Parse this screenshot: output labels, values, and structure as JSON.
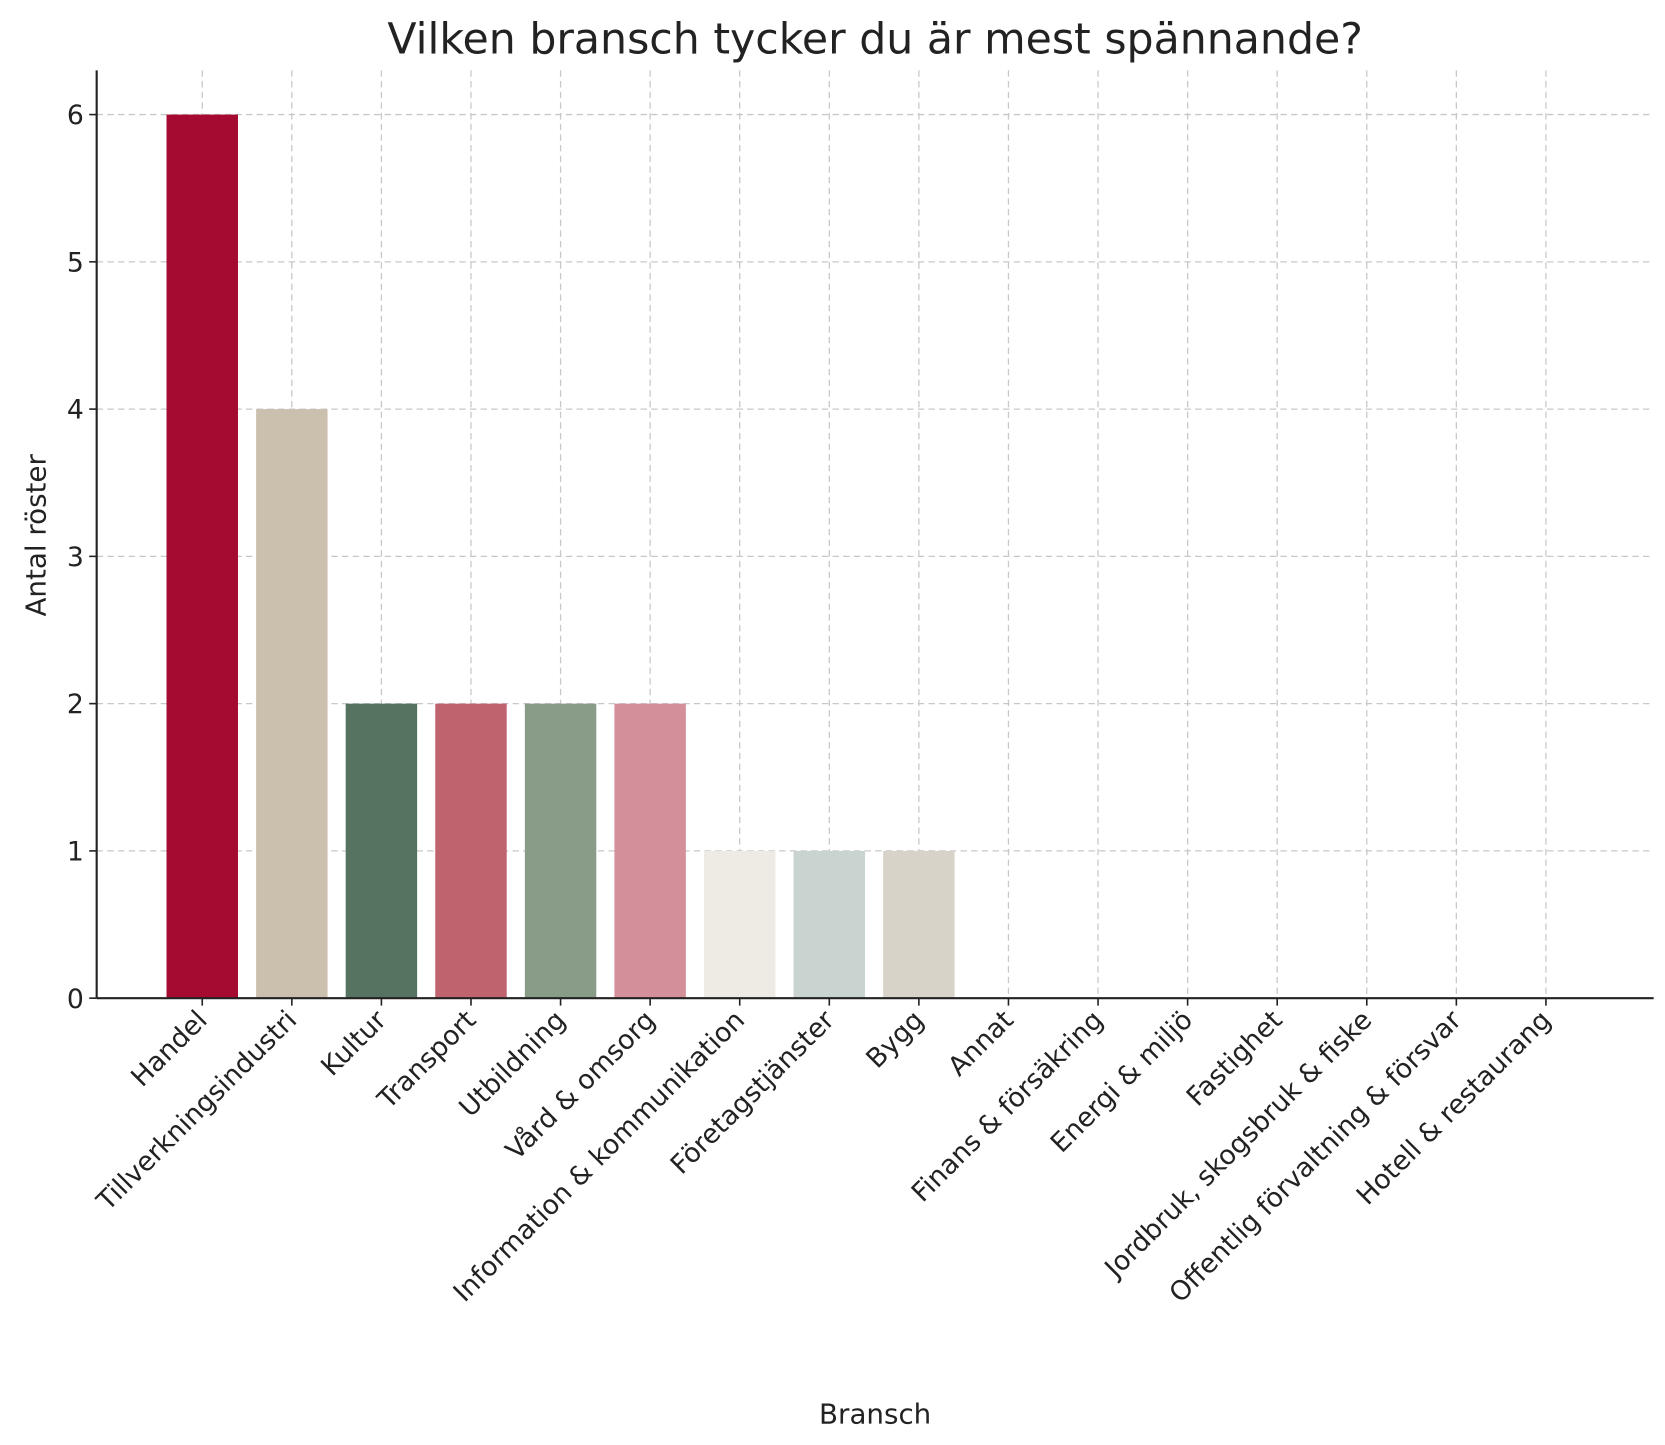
{
  "chart_data": {
    "type": "bar",
    "title": "Vilken bransch tycker du är mest spännande?",
    "x_label": "Bransch",
    "y_label": "Antal röster",
    "categories": [
      "Handel",
      "Tillverkningsindustri",
      "Kultur",
      "Transport",
      "Utbildning",
      "Vård & omsorg",
      "Information & kommunikation",
      "Företagstjänster",
      "Bygg",
      "Annat",
      "Finans & försäkring",
      "Energi & miljö",
      "Fastighet",
      "Jordbruk, skogsbruk & fiske",
      "Offentlig förvaltning & försvar",
      "Hotell & restaurang"
    ],
    "values": [
      6,
      4,
      2,
      2,
      2,
      2,
      1,
      1,
      1,
      0,
      0,
      0,
      0,
      0,
      0,
      0
    ],
    "colors": [
      "#a50a30",
      "#cbbfae",
      "#557360",
      "#bf636e",
      "#899c88",
      "#d4909a",
      "#edebe4",
      "#c9d3cf",
      "#d8d3c8",
      "#a50a30",
      "#cbbfae",
      "#557360",
      "#bf636e",
      "#899c88",
      "#d4909a",
      "#edebe4"
    ],
    "ylim": [
      0,
      6.3
    ],
    "yticks": [
      0,
      1,
      2,
      3,
      4,
      5,
      6
    ],
    "grid": true
  }
}
